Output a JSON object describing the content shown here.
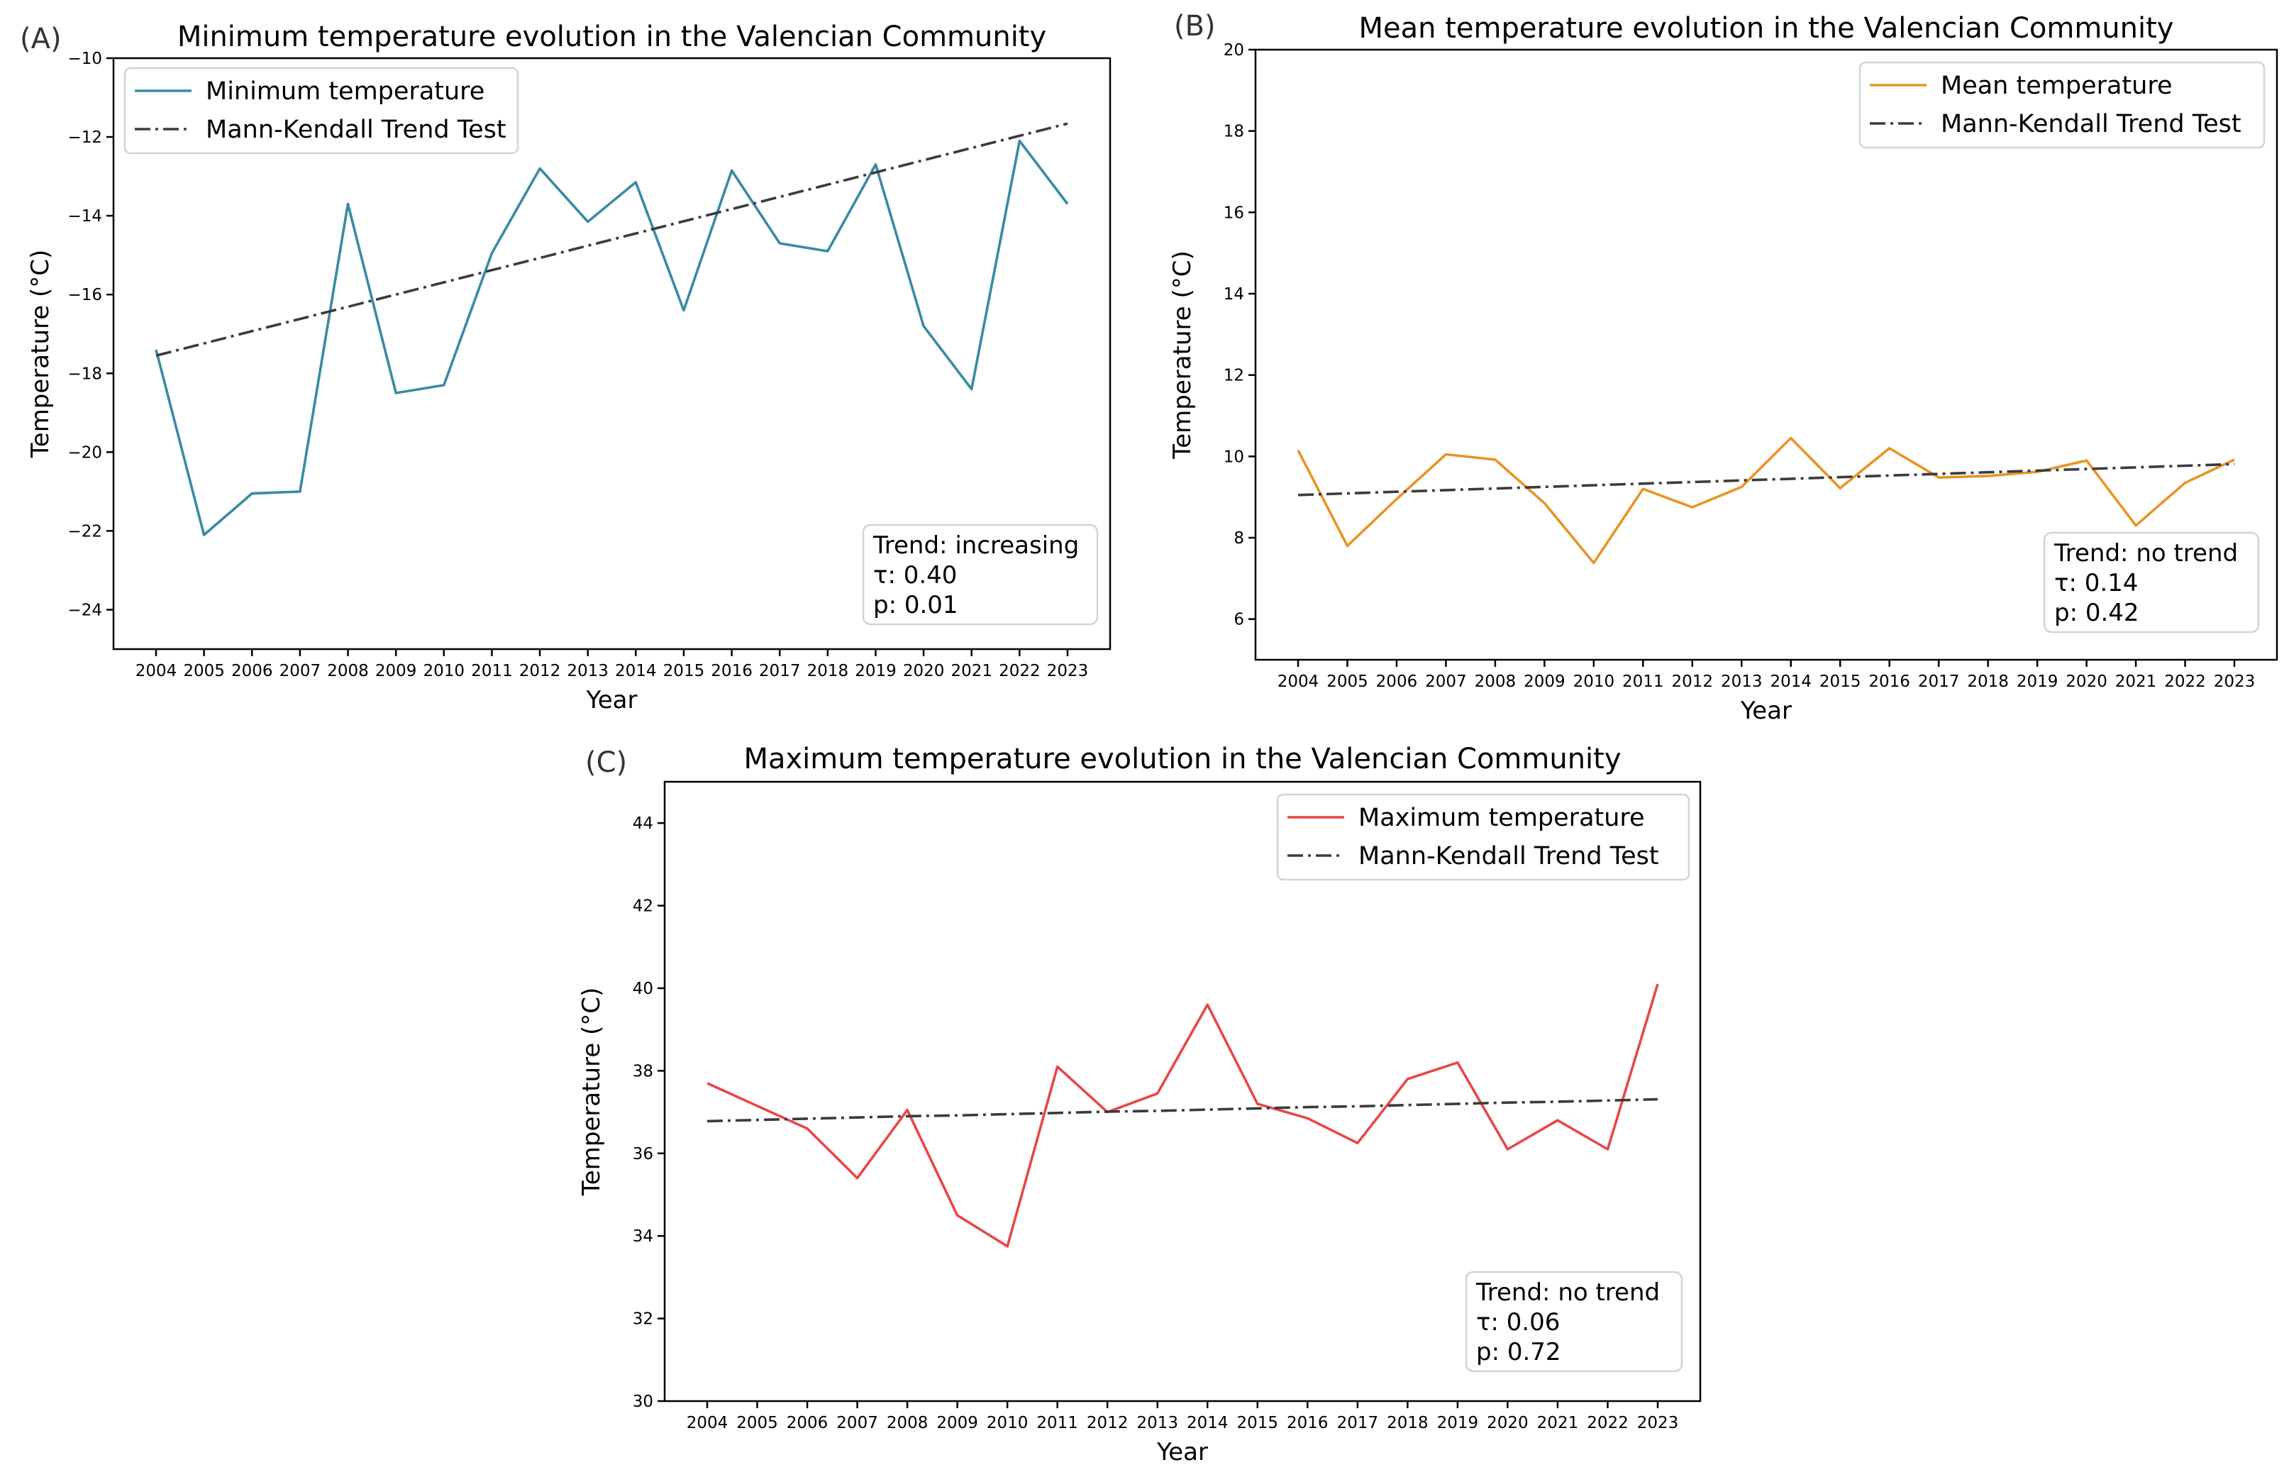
{
  "chart_data": [
    {
      "panel": "(A)",
      "type": "line",
      "title": "Minimum temperature evolution in the Valencian Community",
      "xlabel": "Year",
      "ylabel": "Temperature (°C)",
      "x": [
        "2004",
        "2005",
        "2006",
        "2007",
        "2008",
        "2009",
        "2010",
        "2011",
        "2012",
        "2013",
        "2014",
        "2015",
        "2016",
        "2017",
        "2018",
        "2019",
        "2020",
        "2021",
        "2022",
        "2023"
      ],
      "ylim": [
        -25,
        -10
      ],
      "yticks": [
        -24,
        -22,
        -20,
        -18,
        -16,
        -14,
        -12,
        -10
      ],
      "series": [
        {
          "name": "Minimum temperature",
          "color": "#3a8aa5",
          "style": "solid",
          "values": [
            -17.4,
            -22.1,
            -21.05,
            -21.0,
            -13.7,
            -18.5,
            -18.3,
            -14.95,
            -12.8,
            -14.15,
            -13.15,
            -16.4,
            -12.85,
            -14.7,
            -14.9,
            -12.7,
            -16.8,
            -18.4,
            -12.1,
            -13.7
          ]
        },
        {
          "name": "Mann-Kendall Trend Test",
          "color": "#3b3b3b",
          "style": "dashdot",
          "values": [
            -17.55,
            -17.24,
            -16.93,
            -16.62,
            -16.31,
            -16.0,
            -15.69,
            -15.38,
            -15.07,
            -14.76,
            -14.45,
            -14.14,
            -13.83,
            -13.52,
            -13.21,
            -12.9,
            -12.59,
            -12.28,
            -11.97,
            -11.66
          ]
        }
      ],
      "stats": {
        "trend": "Trend: increasing",
        "tau": "τ: 0.40",
        "p": "p: 0.01"
      },
      "legend": "top-left",
      "grid": false
    },
    {
      "panel": "(B)",
      "type": "line",
      "title": "Mean temperature evolution in the Valencian Community",
      "xlabel": "Year",
      "ylabel": "Temperature (°C)",
      "x": [
        "2004",
        "2005",
        "2006",
        "2007",
        "2008",
        "2009",
        "2010",
        "2011",
        "2012",
        "2013",
        "2014",
        "2015",
        "2016",
        "2017",
        "2018",
        "2019",
        "2020",
        "2021",
        "2022",
        "2023"
      ],
      "ylim": [
        5,
        20
      ],
      "yticks": [
        6,
        8,
        10,
        12,
        14,
        16,
        18,
        20
      ],
      "series": [
        {
          "name": "Mean temperature",
          "color": "#e89427",
          "style": "solid",
          "values": [
            10.15,
            7.8,
            8.95,
            10.05,
            9.92,
            8.85,
            7.38,
            9.2,
            8.75,
            9.25,
            10.45,
            9.22,
            10.2,
            9.48,
            9.52,
            9.62,
            9.9,
            8.3,
            9.35,
            9.92
          ]
        },
        {
          "name": "Mann-Kendall Trend Test",
          "color": "#3b3b3b",
          "style": "dashdot",
          "values": [
            9.05,
            9.09,
            9.13,
            9.17,
            9.21,
            9.25,
            9.29,
            9.33,
            9.37,
            9.41,
            9.45,
            9.49,
            9.53,
            9.57,
            9.61,
            9.65,
            9.69,
            9.73,
            9.77,
            9.81
          ]
        }
      ],
      "stats": {
        "trend": "Trend: no trend",
        "tau": "τ: 0.14",
        "p": "p: 0.42"
      },
      "legend": "top-right",
      "grid": false
    },
    {
      "panel": "(C)",
      "type": "line",
      "title": "Maximum temperature evolution in the Valencian Community",
      "xlabel": "Year",
      "ylabel": "Temperature (°C)",
      "x": [
        "2004",
        "2005",
        "2006",
        "2007",
        "2008",
        "2009",
        "2010",
        "2011",
        "2012",
        "2013",
        "2014",
        "2015",
        "2016",
        "2017",
        "2018",
        "2019",
        "2020",
        "2021",
        "2022",
        "2023"
      ],
      "ylim": [
        30,
        45
      ],
      "yticks": [
        30,
        32,
        34,
        36,
        38,
        40,
        42,
        44
      ],
      "series": [
        {
          "name": "Maximum temperature",
          "color": "#e84747",
          "style": "solid",
          "values": [
            37.7,
            37.15,
            36.6,
            35.4,
            37.05,
            34.5,
            33.75,
            38.1,
            37.0,
            37.45,
            39.6,
            37.2,
            36.85,
            36.25,
            37.8,
            38.2,
            36.1,
            36.8,
            36.1,
            40.1
          ]
        },
        {
          "name": "Mann-Kendall Trend Test",
          "color": "#3b3b3b",
          "style": "dashdot",
          "values": [
            36.78,
            36.81,
            36.84,
            36.87,
            36.9,
            36.92,
            36.95,
            36.98,
            37.01,
            37.03,
            37.06,
            37.09,
            37.12,
            37.14,
            37.17,
            37.2,
            37.23,
            37.25,
            37.28,
            37.31
          ]
        }
      ],
      "stats": {
        "trend": "Trend: no trend",
        "tau": "τ: 0.06",
        "p": "p: 0.72"
      },
      "legend": "top-right",
      "grid": false
    }
  ]
}
